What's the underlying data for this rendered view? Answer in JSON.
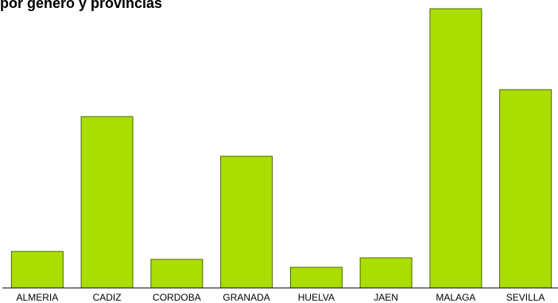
{
  "chart_data": {
    "type": "bar",
    "title": "por género y provincias",
    "xlabel": "",
    "ylabel": "",
    "categories": [
      "ALMERIA",
      "CADIZ",
      "CORDOBA",
      "GRANADA",
      "HUELVA",
      "JAEN",
      "MALAGA",
      "SEVILLA"
    ],
    "values": [
      46,
      216,
      36,
      166,
      26,
      38,
      352,
      250
    ],
    "ylim": [
      0,
      352
    ],
    "grid": false,
    "legend": "none",
    "colors": {
      "bar_fill": "#aadd00",
      "bar_stroke": "#4a6a00",
      "axis": "#000000"
    }
  }
}
